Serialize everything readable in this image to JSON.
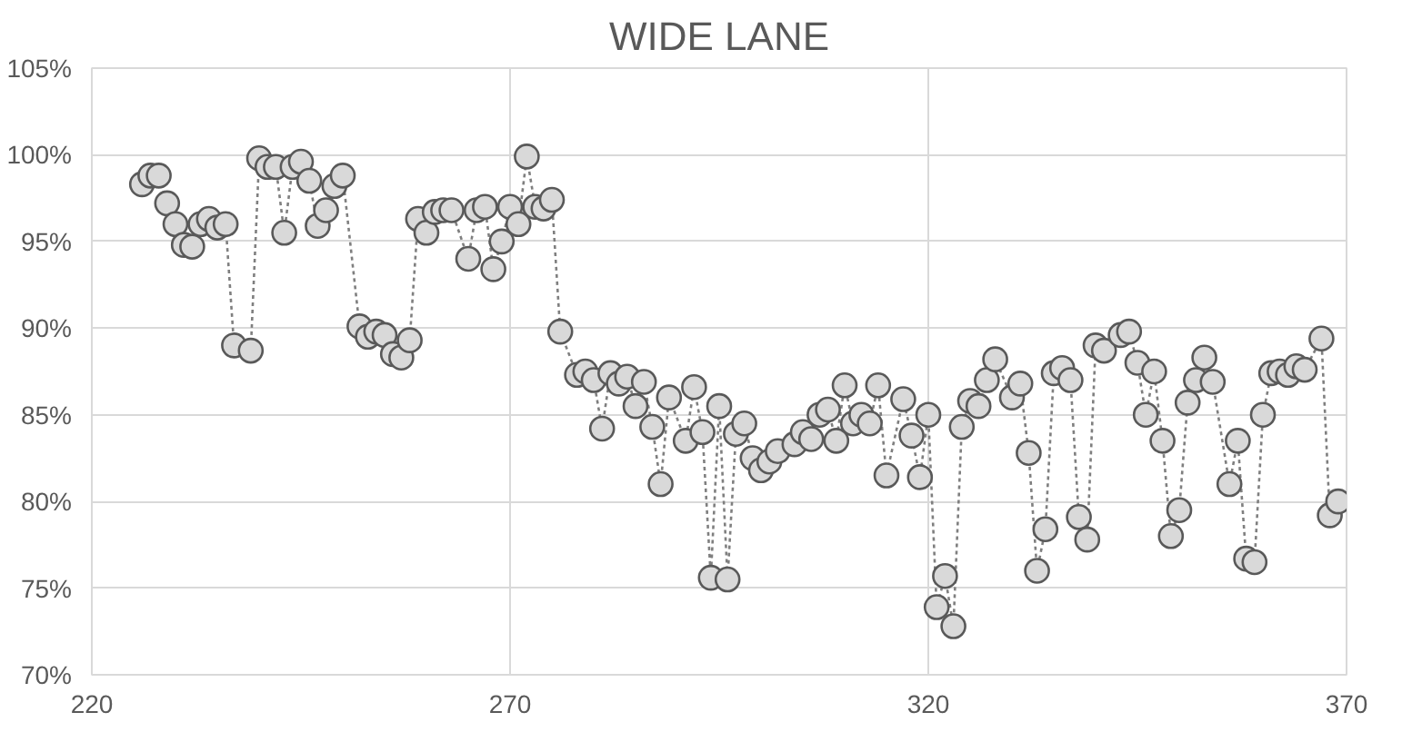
{
  "chart_data": {
    "type": "line",
    "title": "WIDE LANE",
    "marker": "circle",
    "line_style": "dotted",
    "grid": true,
    "xlim": [
      220,
      370
    ],
    "xticks": [
      220,
      270,
      320,
      370
    ],
    "ylim": [
      70,
      105
    ],
    "yticks": [
      {
        "value": 70,
        "label": "70%"
      },
      {
        "value": 75,
        "label": "75%"
      },
      {
        "value": 80,
        "label": "80%"
      },
      {
        "value": 85,
        "label": "85%"
      },
      {
        "value": 90,
        "label": "90%"
      },
      {
        "value": 95,
        "label": "95%"
      },
      {
        "value": 100,
        "label": "100%"
      },
      {
        "value": 105,
        "label": "105%"
      }
    ],
    "x": [
      226,
      227,
      228,
      229,
      230,
      231,
      232,
      233,
      234,
      235,
      236,
      237,
      239,
      240,
      241,
      242,
      243,
      244,
      245,
      246,
      247,
      248,
      249,
      250,
      252,
      253,
      254,
      255,
      256,
      257,
      258,
      259,
      260,
      261,
      262,
      263,
      265,
      266,
      267,
      268,
      269,
      270,
      271,
      272,
      273,
      274,
      275,
      276,
      278,
      279,
      280,
      281,
      282,
      283,
      284,
      285,
      286,
      287,
      288,
      289,
      291,
      292,
      293,
      294,
      295,
      296,
      297,
      298,
      299,
      300,
      301,
      302,
      304,
      305,
      306,
      307,
      308,
      309,
      310,
      311,
      312,
      313,
      314,
      315,
      317,
      318,
      319,
      320,
      321,
      322,
      323,
      324,
      325,
      326,
      327,
      328,
      330,
      331,
      332,
      333,
      334,
      335,
      336,
      337,
      338,
      339,
      340,
      341,
      343,
      344,
      345,
      346,
      347,
      348,
      349,
      350,
      351,
      352,
      353,
      354,
      356,
      357,
      358,
      359,
      360,
      361,
      362,
      363,
      364,
      365,
      367,
      368,
      369
    ],
    "series": [
      {
        "color": "#d9d9d9",
        "values": [
          98.3,
          98.8,
          98.8,
          97.2,
          96,
          94.8,
          94.7,
          96,
          96.3,
          95.8,
          96,
          89,
          88.7,
          99.8,
          99.3,
          99.3,
          95.5,
          99.3,
          99.6,
          98.5,
          95.9,
          96.8,
          98.2,
          98.8,
          90.1,
          89.5,
          89.8,
          89.6,
          88.5,
          88.3,
          89.3,
          96.3,
          95.5,
          96.7,
          96.8,
          96.8,
          94,
          96.8,
          97,
          93.4,
          95,
          97,
          96,
          99.9,
          97,
          96.9,
          97.4,
          89.8,
          87.3,
          87.5,
          87,
          84.2,
          87.4,
          86.8,
          87.2,
          85.5,
          86.9,
          84.3,
          81,
          86,
          83.5,
          86.6,
          84,
          75.6,
          85.5,
          75.5,
          83.9,
          84.5,
          82.5,
          81.8,
          82.3,
          82.9,
          83.3,
          84,
          83.6,
          85,
          85.3,
          83.5,
          86.7,
          84.5,
          85,
          84.5,
          86.7,
          81.5,
          85.9,
          83.8,
          81.4,
          85,
          73.9,
          75.7,
          72.8,
          84.3,
          85.8,
          85.5,
          87,
          88.2,
          86,
          86.8,
          82.8,
          76,
          78.4,
          87.4,
          87.7,
          87,
          79.1,
          77.8,
          89,
          88.7,
          89.6,
          89.8,
          88,
          85,
          87.5,
          83.5,
          78,
          79.5,
          85.7,
          87,
          88.3,
          86.9,
          81,
          83.5,
          76.7,
          76.5,
          85,
          87.4,
          87.5,
          87.3,
          87.8,
          87.6,
          89.4,
          79.2,
          80
        ]
      }
    ]
  }
}
